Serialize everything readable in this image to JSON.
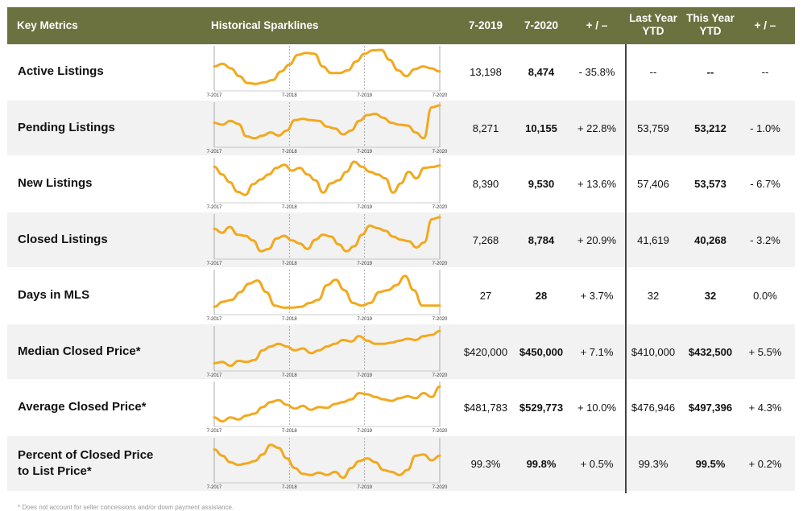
{
  "header": {
    "key_metrics": "Key Metrics",
    "sparklines": "Historical Sparklines",
    "col_2019": "7-2019",
    "col_2020": "7-2020",
    "pm": "+ / –",
    "last_year_l1": "Last Year",
    "last_year_l2": "YTD",
    "this_year_l1": "This Year",
    "this_year_l2": "YTD",
    "pm2": "+ / –"
  },
  "axis_labels": [
    "7-2017",
    "7-2018",
    "7-2019",
    "7-2020"
  ],
  "accent_color": "#f2a91e",
  "rows": [
    {
      "label_l1": "Active Listings",
      "label_l2": "",
      "v2019": "13,198",
      "v2020": "8,474",
      "pct": "- 35.8%",
      "ly": "--",
      "ty": "--",
      "pct2": "--",
      "spark": [
        0.55,
        0.62,
        0.5,
        0.3,
        0.12,
        0.1,
        0.14,
        0.2,
        0.42,
        0.6,
        0.85,
        0.9,
        0.88,
        0.55,
        0.38,
        0.38,
        0.45,
        0.68,
        0.88,
        0.97,
        0.98,
        0.72,
        0.45,
        0.3,
        0.48,
        0.55,
        0.5,
        0.42
      ]
    },
    {
      "label_l1": "Pending Listings",
      "label_l2": "",
      "v2019": "8,271",
      "v2020": "10,155",
      "pct": "+ 22.8%",
      "ly": "53,759",
      "ty": "53,212",
      "pct2": "- 1.0%",
      "spark": [
        0.55,
        0.5,
        0.6,
        0.52,
        0.2,
        0.15,
        0.22,
        0.3,
        0.22,
        0.35,
        0.62,
        0.65,
        0.62,
        0.6,
        0.45,
        0.4,
        0.25,
        0.35,
        0.6,
        0.75,
        0.78,
        0.68,
        0.55,
        0.5,
        0.48,
        0.3,
        0.15,
        0.95,
        1.0
      ]
    },
    {
      "label_l1": "New Listings",
      "label_l2": "",
      "v2019": "8,390",
      "v2020": "9,530",
      "pct": "+ 13.6%",
      "ly": "57,406",
      "ty": "53,573",
      "pct2": "- 6.7%",
      "spark": [
        0.85,
        0.65,
        0.45,
        0.2,
        0.12,
        0.4,
        0.52,
        0.65,
        0.82,
        0.9,
        0.75,
        0.82,
        0.65,
        0.5,
        0.18,
        0.42,
        0.5,
        0.72,
        0.98,
        0.85,
        0.72,
        0.65,
        0.55,
        0.18,
        0.42,
        0.72,
        0.55,
        0.82,
        0.84,
        0.88
      ]
    },
    {
      "label_l1": "Closed Listings",
      "label_l2": "",
      "v2019": "7,268",
      "v2020": "8,784",
      "pct": "+ 20.9%",
      "ly": "41,619",
      "ty": "40,268",
      "pct2": "- 3.2%",
      "spark": [
        0.7,
        0.6,
        0.75,
        0.55,
        0.52,
        0.4,
        0.12,
        0.18,
        0.45,
        0.52,
        0.4,
        0.32,
        0.18,
        0.42,
        0.55,
        0.5,
        0.3,
        0.12,
        0.25,
        0.55,
        0.78,
        0.72,
        0.65,
        0.5,
        0.42,
        0.38,
        0.22,
        0.35,
        0.95,
        1.0
      ]
    },
    {
      "label_l1": "Days in MLS",
      "label_l2": "",
      "v2019": "27",
      "v2020": "28",
      "pct": "+ 3.7%",
      "ly": "32",
      "ty": "32",
      "pct2": "0.0%",
      "spark": [
        0.12,
        0.25,
        0.3,
        0.5,
        0.72,
        0.8,
        0.5,
        0.15,
        0.1,
        0.1,
        0.12,
        0.22,
        0.3,
        0.68,
        0.82,
        0.55,
        0.22,
        0.15,
        0.22,
        0.5,
        0.55,
        0.68,
        0.92,
        0.55,
        0.15,
        0.15,
        0.15
      ]
    },
    {
      "label_l1": "Median Closed Price*",
      "label_l2": "",
      "v2019": "$420,000",
      "v2020": "$450,000",
      "pct": "+ 7.1%",
      "ly": "$410,000",
      "ty": "$432,500",
      "pct2": "+ 5.5%",
      "spark": [
        0.12,
        0.15,
        0.05,
        0.18,
        0.15,
        0.2,
        0.45,
        0.55,
        0.62,
        0.55,
        0.45,
        0.5,
        0.38,
        0.45,
        0.55,
        0.62,
        0.72,
        0.68,
        0.82,
        0.7,
        0.62,
        0.62,
        0.65,
        0.7,
        0.75,
        0.72,
        0.82,
        0.85,
        0.95
      ]
    },
    {
      "label_l1": "Average Closed Price*",
      "label_l2": "",
      "v2019": "$481,783",
      "v2020": "$529,773",
      "pct": "+ 10.0%",
      "ly": "$476,946",
      "ty": "$497,396",
      "pct2": "+ 4.3%",
      "spark": [
        0.15,
        0.05,
        0.15,
        0.1,
        0.2,
        0.25,
        0.42,
        0.55,
        0.6,
        0.48,
        0.38,
        0.45,
        0.35,
        0.42,
        0.4,
        0.5,
        0.55,
        0.62,
        0.78,
        0.75,
        0.68,
        0.62,
        0.58,
        0.65,
        0.7,
        0.65,
        0.78,
        0.68,
        0.95
      ]
    },
    {
      "label_l1": "Percent of Closed Price",
      "label_l2": "to List Price*",
      "v2019": "99.3%",
      "v2020": "99.8%",
      "pct": "+ 0.5%",
      "ly": "99.3%",
      "ty": "99.5%",
      "pct2": "+ 0.2%",
      "spark": [
        0.78,
        0.62,
        0.45,
        0.38,
        0.42,
        0.48,
        0.65,
        0.9,
        0.82,
        0.55,
        0.3,
        0.15,
        0.12,
        0.18,
        0.12,
        0.2,
        0.05,
        0.3,
        0.48,
        0.55,
        0.45,
        0.25,
        0.2,
        0.12,
        0.25,
        0.62,
        0.65,
        0.5,
        0.62
      ]
    }
  ],
  "footnote": "* Does not account for seller concessions and/or down payment assistance."
}
